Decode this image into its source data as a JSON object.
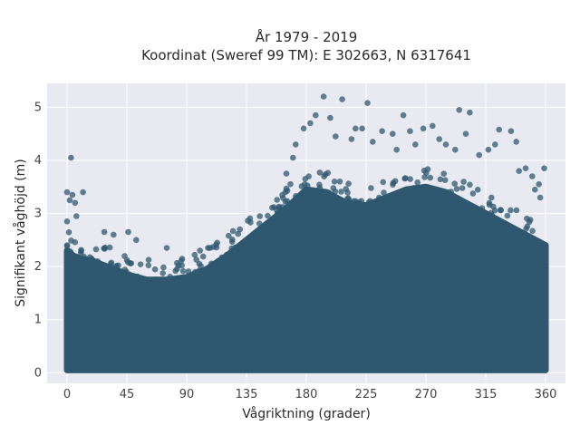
{
  "chart_data": {
    "type": "scatter",
    "title": "År 1979 - 2019",
    "subtitle": "Koordinat (Sweref 99 TM): E 302663, N 6317641",
    "xlabel": "Vågriktning (grader)",
    "ylabel": "Signifikant våghöjd (m)",
    "xlim": [
      -15,
      375
    ],
    "ylim": [
      -0.2,
      5.45
    ],
    "xticks": [
      0,
      45,
      90,
      135,
      180,
      225,
      270,
      315,
      360
    ],
    "yticks": [
      0,
      1,
      2,
      3,
      4,
      5
    ],
    "grid": true,
    "marker_color": "#2f5870",
    "background_color": "#e9e9f1",
    "dense_envelope": {
      "x": [
        0,
        5,
        10,
        20,
        30,
        45,
        60,
        75,
        90,
        105,
        120,
        135,
        150,
        165,
        180,
        195,
        210,
        225,
        240,
        255,
        270,
        285,
        300,
        315,
        330,
        345,
        360
      ],
      "ymin": [
        0.05,
        0.05,
        0.05,
        0.05,
        0.05,
        0.05,
        0.05,
        0.05,
        0.05,
        0.05,
        0.05,
        0.05,
        0.05,
        0.05,
        0.05,
        0.05,
        0.05,
        0.05,
        0.05,
        0.05,
        0.05,
        0.05,
        0.05,
        0.05,
        0.05,
        0.05,
        0.05
      ],
      "ymax": [
        2.3,
        2.2,
        2.15,
        2.1,
        2.0,
        1.85,
        1.75,
        1.75,
        1.8,
        1.95,
        2.2,
        2.5,
        2.8,
        3.1,
        3.45,
        3.4,
        3.2,
        3.15,
        3.3,
        3.45,
        3.5,
        3.4,
        3.2,
        3.0,
        2.8,
        2.6,
        2.4
      ]
    },
    "outliers": [
      {
        "x": 3,
        "y": 4.05
      },
      {
        "x": 0,
        "y": 3.4
      },
      {
        "x": 4,
        "y": 3.35
      },
      {
        "x": 12,
        "y": 3.4
      },
      {
        "x": 2,
        "y": 3.25
      },
      {
        "x": 6,
        "y": 3.2
      },
      {
        "x": 0,
        "y": 2.85
      },
      {
        "x": 7,
        "y": 2.95
      },
      {
        "x": 28,
        "y": 2.65
      },
      {
        "x": 35,
        "y": 2.6
      },
      {
        "x": 46,
        "y": 2.65
      },
      {
        "x": 52,
        "y": 2.5
      },
      {
        "x": 75,
        "y": 2.35
      },
      {
        "x": 100,
        "y": 2.3
      },
      {
        "x": 113,
        "y": 2.45
      },
      {
        "x": 130,
        "y": 2.7
      },
      {
        "x": 145,
        "y": 2.95
      },
      {
        "x": 165,
        "y": 3.75
      },
      {
        "x": 170,
        "y": 4.05
      },
      {
        "x": 172,
        "y": 4.3
      },
      {
        "x": 178,
        "y": 4.6
      },
      {
        "x": 183,
        "y": 4.7
      },
      {
        "x": 187,
        "y": 4.85
      },
      {
        "x": 193,
        "y": 5.2
      },
      {
        "x": 198,
        "y": 4.8
      },
      {
        "x": 202,
        "y": 4.45
      },
      {
        "x": 207,
        "y": 5.15
      },
      {
        "x": 214,
        "y": 4.4
      },
      {
        "x": 217,
        "y": 4.6
      },
      {
        "x": 222,
        "y": 4.6
      },
      {
        "x": 226,
        "y": 5.08
      },
      {
        "x": 230,
        "y": 4.35
      },
      {
        "x": 237,
        "y": 4.55
      },
      {
        "x": 245,
        "y": 4.5
      },
      {
        "x": 248,
        "y": 4.2
      },
      {
        "x": 253,
        "y": 4.85
      },
      {
        "x": 258,
        "y": 4.55
      },
      {
        "x": 262,
        "y": 4.3
      },
      {
        "x": 268,
        "y": 4.6
      },
      {
        "x": 275,
        "y": 4.65
      },
      {
        "x": 280,
        "y": 4.4
      },
      {
        "x": 285,
        "y": 4.3
      },
      {
        "x": 292,
        "y": 4.2
      },
      {
        "x": 295,
        "y": 4.95
      },
      {
        "x": 300,
        "y": 4.5
      },
      {
        "x": 303,
        "y": 4.9
      },
      {
        "x": 310,
        "y": 4.1
      },
      {
        "x": 317,
        "y": 4.2
      },
      {
        "x": 322,
        "y": 4.3
      },
      {
        "x": 325,
        "y": 4.58
      },
      {
        "x": 334,
        "y": 4.55
      },
      {
        "x": 338,
        "y": 4.35
      },
      {
        "x": 340,
        "y": 3.8
      },
      {
        "x": 345,
        "y": 3.85
      },
      {
        "x": 350,
        "y": 3.7
      },
      {
        "x": 355,
        "y": 3.55
      },
      {
        "x": 359,
        "y": 3.85
      },
      {
        "x": 356,
        "y": 3.3
      },
      {
        "x": 352,
        "y": 3.45
      }
    ]
  }
}
